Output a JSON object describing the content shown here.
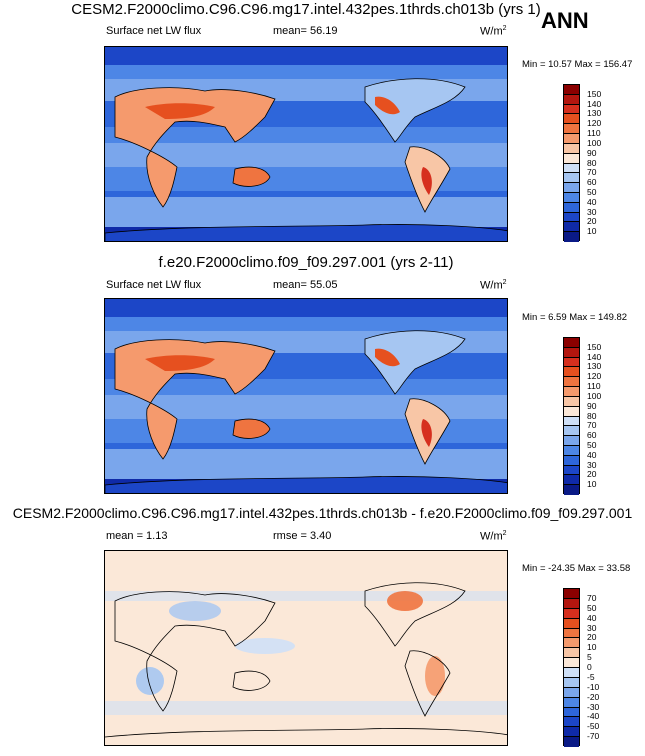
{
  "season_label": "ANN",
  "chart_data": [
    {
      "type": "heatmap",
      "title": "CESM2.F2000climo.C96.C96.mg17.intel.432pes.1thrds.ch013b (yrs 1)",
      "left_label": "Surface net LW flux",
      "center_label": "mean=  56.19",
      "units": "W/m",
      "units_sup": "2",
      "min_max": "Min =  10.57 Max = 156.47",
      "min": 10.57,
      "max": 156.47,
      "mean": 56.19,
      "levels": [
        "150",
        "140",
        "130",
        "120",
        "110",
        "100",
        "90",
        "80",
        "70",
        "60",
        "50",
        "40",
        "30",
        "20",
        "10"
      ],
      "colors": [
        "#8b0000",
        "#b3160f",
        "#d62f1e",
        "#e6501f",
        "#ef7440",
        "#f59a6d",
        "#f8c6a6",
        "#fbe8d8",
        "#cfe0f7",
        "#a6c6f2",
        "#7aa6ec",
        "#4d86e6",
        "#2e66da",
        "#1c46c7",
        "#0f2aa8",
        "#0a1a86"
      ],
      "units_note": "W/m2"
    },
    {
      "type": "heatmap",
      "title": "f.e20.F2000climo.f09_f09.297.001 (yrs 2-11)",
      "left_label": "Surface net LW flux",
      "center_label": "mean=  55.05",
      "units": "W/m",
      "units_sup": "2",
      "min_max": "Min =   6.59 Max = 149.82",
      "min": 6.59,
      "max": 149.82,
      "mean": 55.05,
      "levels": [
        "150",
        "140",
        "130",
        "120",
        "110",
        "100",
        "90",
        "80",
        "70",
        "60",
        "50",
        "40",
        "30",
        "20",
        "10"
      ],
      "colors": [
        "#8b0000",
        "#b3160f",
        "#d62f1e",
        "#e6501f",
        "#ef7440",
        "#f59a6d",
        "#f8c6a6",
        "#fbe8d8",
        "#cfe0f7",
        "#a6c6f2",
        "#7aa6ec",
        "#4d86e6",
        "#2e66da",
        "#1c46c7",
        "#0f2aa8",
        "#0a1a86"
      ]
    },
    {
      "type": "heatmap",
      "title": "CESM2.F2000climo.C96.C96.mg17.intel.432pes.1thrds.ch013b - f.e20.F2000climo.f09_f09.297.001",
      "left_label": "mean =   1.13",
      "center_label": "rmse =   3.40",
      "units": "W/m",
      "units_sup": "2",
      "min_max": "Min = -24.35 Max =  33.58",
      "min": -24.35,
      "max": 33.58,
      "mean": 1.13,
      "rmse": 3.4,
      "levels": [
        "70",
        "50",
        "40",
        "30",
        "20",
        "10",
        "5",
        "0",
        "-5",
        "-10",
        "-20",
        "-30",
        "-40",
        "-50",
        "-70"
      ],
      "colors": [
        "#8b0000",
        "#b3160f",
        "#d62f1e",
        "#e6501f",
        "#ef7440",
        "#f59a6d",
        "#f8c6a6",
        "#fbe8d8",
        "#cfe0f7",
        "#a6c6f2",
        "#7aa6ec",
        "#4d86e6",
        "#2e66da",
        "#1c46c7",
        "#0f2aa8",
        "#0a1a86"
      ]
    }
  ]
}
